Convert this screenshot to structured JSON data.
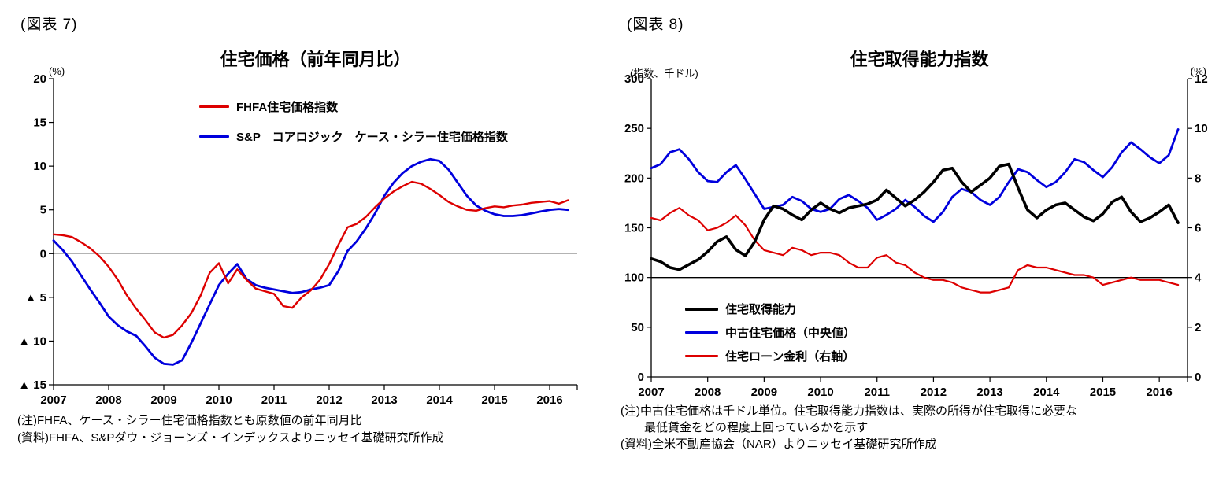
{
  "chart_data": [
    {
      "type": "line",
      "panel_label": "(図表 7)",
      "title": "住宅価格（前年同月比）",
      "axis_unit_left": "(%)",
      "x": {
        "start": 2007,
        "max": 2016.5,
        "step_years": 0.166667,
        "tick_years": [
          "2007",
          "2008",
          "2009",
          "2010",
          "2011",
          "2012",
          "2013",
          "2014",
          "2015",
          "2016"
        ]
      },
      "y_left": {
        "min": -15,
        "max": 20,
        "ticks": [
          20,
          15,
          10,
          5,
          0,
          -5,
          -10,
          -15
        ],
        "labels": [
          "20",
          "15",
          "10",
          "5",
          "0",
          "▲ 5",
          "▲ 10",
          "▲ 15"
        ]
      },
      "zero_line_left": 0,
      "grid": "zero-line-only",
      "legend_position": "top-inside",
      "series": [
        {
          "name": "FHFA住宅価格指数",
          "color": "#dd0000",
          "axis": "left",
          "width": 2.4,
          "values": [
            2.2,
            2.1,
            1.9,
            1.3,
            0.6,
            -0.3,
            -1.5,
            -3.0,
            -4.8,
            -6.3,
            -7.6,
            -9.0,
            -9.6,
            -9.3,
            -8.2,
            -6.8,
            -4.8,
            -2.2,
            -1.1,
            -3.4,
            -1.8,
            -3.0,
            -4.0,
            -4.3,
            -4.6,
            -6.0,
            -6.2,
            -5.0,
            -4.2,
            -3.0,
            -1.2,
            1.0,
            3.0,
            3.4,
            4.2,
            5.3,
            6.3,
            7.1,
            7.7,
            8.2,
            8.0,
            7.4,
            6.7,
            5.9,
            5.4,
            5.0,
            4.9,
            5.2,
            5.4,
            5.3,
            5.5,
            5.6,
            5.8,
            5.9,
            6.0,
            5.7,
            6.1
          ]
        },
        {
          "name": "S&P　コアロジック　ケース・シラー住宅価格指数",
          "color": "#0000dd",
          "axis": "left",
          "width": 2.8,
          "values": [
            1.5,
            0.4,
            -0.9,
            -2.5,
            -4.1,
            -5.6,
            -7.2,
            -8.2,
            -8.9,
            -9.4,
            -10.6,
            -11.9,
            -12.6,
            -12.7,
            -12.2,
            -10.2,
            -8.0,
            -5.8,
            -3.6,
            -2.3,
            -1.2,
            -2.9,
            -3.6,
            -3.9,
            -4.1,
            -4.3,
            -4.5,
            -4.4,
            -4.1,
            -3.9,
            -3.6,
            -2.0,
            0.3,
            1.4,
            2.9,
            4.6,
            6.6,
            8.1,
            9.2,
            10.0,
            10.5,
            10.8,
            10.6,
            9.6,
            8.1,
            6.6,
            5.5,
            4.9,
            4.5,
            4.3,
            4.3,
            4.4,
            4.6,
            4.8,
            5.0,
            5.1,
            5.0
          ]
        }
      ],
      "notes": [
        "(注)FHFA、ケース・シラー住宅価格指数とも原数値の前年同月比",
        "(資料)FHFA、S&Pダウ・ジョーンズ・インデックスよりニッセイ基礎研究所作成"
      ]
    },
    {
      "type": "line",
      "panel_label": "(図表 8)",
      "title": "住宅取得能力指数",
      "axis_unit_left": "(指数、千ドル)",
      "axis_unit_right": "(%)",
      "x": {
        "start": 2007,
        "max": 2016.5,
        "step_years": 0.166667,
        "tick_years": [
          "2007",
          "2008",
          "2009",
          "2010",
          "2011",
          "2012",
          "2013",
          "2014",
          "2015",
          "2016"
        ]
      },
      "y_left": {
        "min": 0,
        "max": 300,
        "ticks": [
          300,
          250,
          200,
          150,
          100,
          50,
          0
        ],
        "labels": [
          "300",
          "250",
          "200",
          "150",
          "100",
          "50",
          "0"
        ]
      },
      "y_right": {
        "min": 0,
        "max": 12,
        "ticks": [
          12,
          10,
          8,
          6,
          4,
          2,
          0
        ],
        "labels": [
          "12",
          "10",
          "8",
          "6",
          "4",
          "2",
          "0"
        ]
      },
      "baseline_left": 100,
      "legend_position": "bottom-left-inside",
      "series": [
        {
          "name": "住宅取得能力",
          "color": "#000000",
          "axis": "left",
          "width": 3.6,
          "values": [
            119,
            116,
            110,
            108,
            113,
            118,
            126,
            136,
            141,
            128,
            122,
            136,
            158,
            172,
            169,
            163,
            158,
            168,
            175,
            169,
            165,
            170,
            172,
            174,
            178,
            188,
            180,
            172,
            178,
            186,
            196,
            208,
            210,
            196,
            186,
            193,
            200,
            212,
            214,
            190,
            168,
            160,
            168,
            173,
            175,
            168,
            161,
            157,
            164,
            176,
            181,
            166,
            156,
            160,
            166,
            173,
            155
          ]
        },
        {
          "name": "中古住宅価格（中央値）",
          "color": "#0000dd",
          "axis": "left",
          "width": 2.8,
          "values": [
            210,
            214,
            226,
            229,
            219,
            206,
            197,
            196,
            206,
            213,
            199,
            184,
            169,
            171,
            173,
            181,
            177,
            169,
            166,
            169,
            179,
            183,
            177,
            170,
            158,
            163,
            169,
            178,
            171,
            162,
            156,
            166,
            181,
            189,
            186,
            178,
            173,
            181,
            196,
            209,
            206,
            198,
            191,
            196,
            206,
            219,
            216,
            208,
            201,
            211,
            226,
            236,
            229,
            221,
            215,
            223,
            249
          ]
        },
        {
          "name": "住宅ローン金利（右軸）",
          "color": "#dd0000",
          "axis": "right",
          "width": 2.2,
          "values": [
            6.4,
            6.3,
            6.6,
            6.8,
            6.5,
            6.3,
            5.9,
            6.0,
            6.2,
            6.5,
            6.1,
            5.5,
            5.1,
            5.0,
            4.9,
            5.2,
            5.1,
            4.9,
            5.0,
            5.0,
            4.9,
            4.6,
            4.4,
            4.4,
            4.8,
            4.9,
            4.6,
            4.5,
            4.2,
            4.0,
            3.9,
            3.9,
            3.8,
            3.6,
            3.5,
            3.4,
            3.4,
            3.5,
            3.6,
            4.3,
            4.5,
            4.4,
            4.4,
            4.3,
            4.2,
            4.1,
            4.1,
            4.0,
            3.7,
            3.8,
            3.9,
            4.0,
            3.9,
            3.9,
            3.9,
            3.8,
            3.7
          ]
        }
      ],
      "notes": [
        "(注)中古住宅価格は千ドル単位。住宅取得能力指数は、実際の所得が住宅取得に必要な",
        "　　最低賃金をどの程度上回っているかを示す",
        "(資料)全米不動産協会（NAR）よりニッセイ基礎研究所作成"
      ]
    }
  ]
}
